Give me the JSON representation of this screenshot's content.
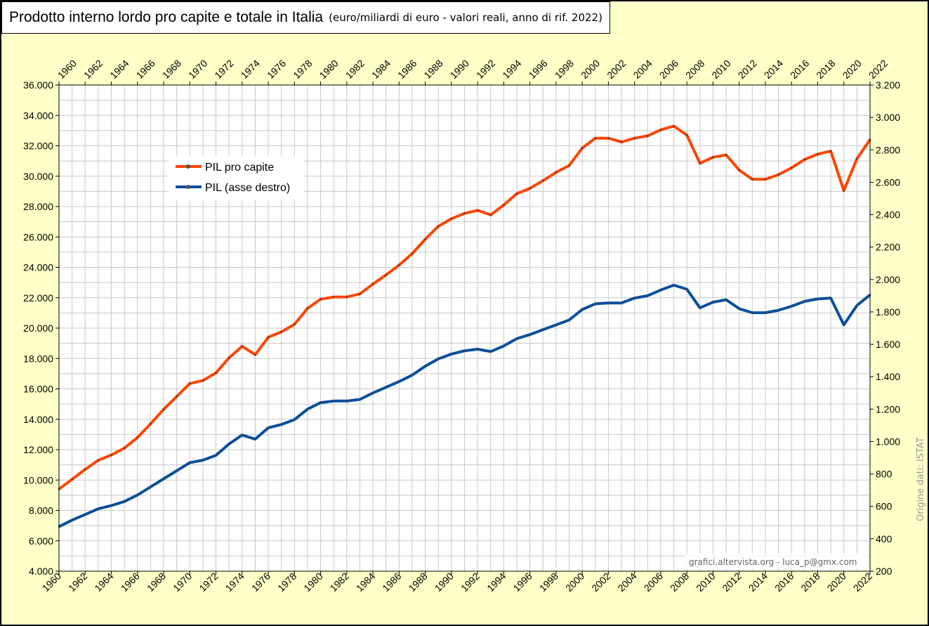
{
  "title": "Prodotto interno lordo pro capite e totale in Italia",
  "subtitle": "(euro/miliardi di euro - valori reali, anno di rif. 2022)",
  "credit": "grafici.altervista.org - luca_p@gmx.com",
  "source": "Origine dati: ISTAT",
  "colors": {
    "background": "#ffffc8",
    "plot": "#ffffff",
    "grid": "#c8c8c8",
    "series1": "#ff4500",
    "series2": "#0a4f9e"
  },
  "chart_data": {
    "type": "line",
    "x": [
      1960,
      1961,
      1962,
      1963,
      1964,
      1965,
      1966,
      1967,
      1968,
      1969,
      1970,
      1971,
      1972,
      1973,
      1974,
      1975,
      1976,
      1977,
      1978,
      1979,
      1980,
      1981,
      1982,
      1983,
      1984,
      1985,
      1986,
      1987,
      1988,
      1989,
      1990,
      1991,
      1992,
      1993,
      1994,
      1995,
      1996,
      1997,
      1998,
      1999,
      2000,
      2001,
      2002,
      2003,
      2004,
      2005,
      2006,
      2007,
      2008,
      2009,
      2010,
      2011,
      2012,
      2013,
      2014,
      2015,
      2016,
      2017,
      2018,
      2019,
      2020,
      2021,
      2022
    ],
    "x_tick_labels": [
      "1960",
      "1962",
      "1964",
      "1966",
      "1968",
      "1970",
      "1972",
      "1974",
      "1976",
      "1978",
      "1980",
      "1982",
      "1984",
      "1986",
      "1988",
      "1990",
      "1992",
      "1994",
      "1996",
      "1998",
      "2000",
      "2002",
      "2004",
      "2006",
      "2008",
      "2010",
      "2012",
      "2014",
      "2016",
      "2018",
      "2020",
      "2022"
    ],
    "y_left": {
      "min": 4000,
      "max": 36000,
      "ticks": [
        "4.000",
        "6.000",
        "8.000",
        "10.000",
        "12.000",
        "14.000",
        "16.000",
        "18.000",
        "20.000",
        "22.000",
        "24.000",
        "26.000",
        "28.000",
        "30.000",
        "32.000",
        "34.000",
        "36.000"
      ]
    },
    "y_right": {
      "min": 200,
      "max": 3200,
      "ticks": [
        "200",
        "400",
        "600",
        "800",
        "1.000",
        "1.200",
        "1.400",
        "1.600",
        "1.800",
        "2.000",
        "2.200",
        "2.400",
        "2.600",
        "2.800",
        "3.000",
        "3.200"
      ]
    },
    "grid": true,
    "legend_position": "top-left",
    "series": [
      {
        "name": "PIL pro capite",
        "axis": "left",
        "values": [
          9400,
          10050,
          10700,
          11300,
          11650,
          12100,
          12800,
          13700,
          14650,
          15500,
          16350,
          16550,
          17050,
          18050,
          18800,
          18250,
          19400,
          19750,
          20250,
          21300,
          21900,
          22050,
          22050,
          22250,
          22900,
          23500,
          24150,
          24900,
          25850,
          26700,
          27200,
          27550,
          27750,
          27450,
          28100,
          28850,
          29200,
          29700,
          30250,
          30700,
          31850,
          32500,
          32500,
          32250,
          32500,
          32650,
          33050,
          33300,
          32700,
          30850,
          31250,
          31400,
          30400,
          29800,
          29800,
          30100,
          30550,
          31100,
          31450,
          31650,
          29050,
          31150,
          32400
        ]
      },
      {
        "name": "PIL (asse destro)",
        "axis": "right",
        "values": [
          475,
          515,
          550,
          585,
          605,
          630,
          670,
          720,
          770,
          820,
          870,
          885,
          915,
          985,
          1040,
          1015,
          1085,
          1105,
          1135,
          1200,
          1240,
          1250,
          1250,
          1260,
          1300,
          1335,
          1370,
          1410,
          1465,
          1510,
          1540,
          1560,
          1570,
          1555,
          1590,
          1635,
          1660,
          1690,
          1720,
          1750,
          1815,
          1850,
          1855,
          1855,
          1885,
          1900,
          1935,
          1965,
          1940,
          1825,
          1860,
          1875,
          1820,
          1795,
          1795,
          1810,
          1835,
          1865,
          1880,
          1885,
          1720,
          1840,
          1905
        ]
      }
    ]
  }
}
